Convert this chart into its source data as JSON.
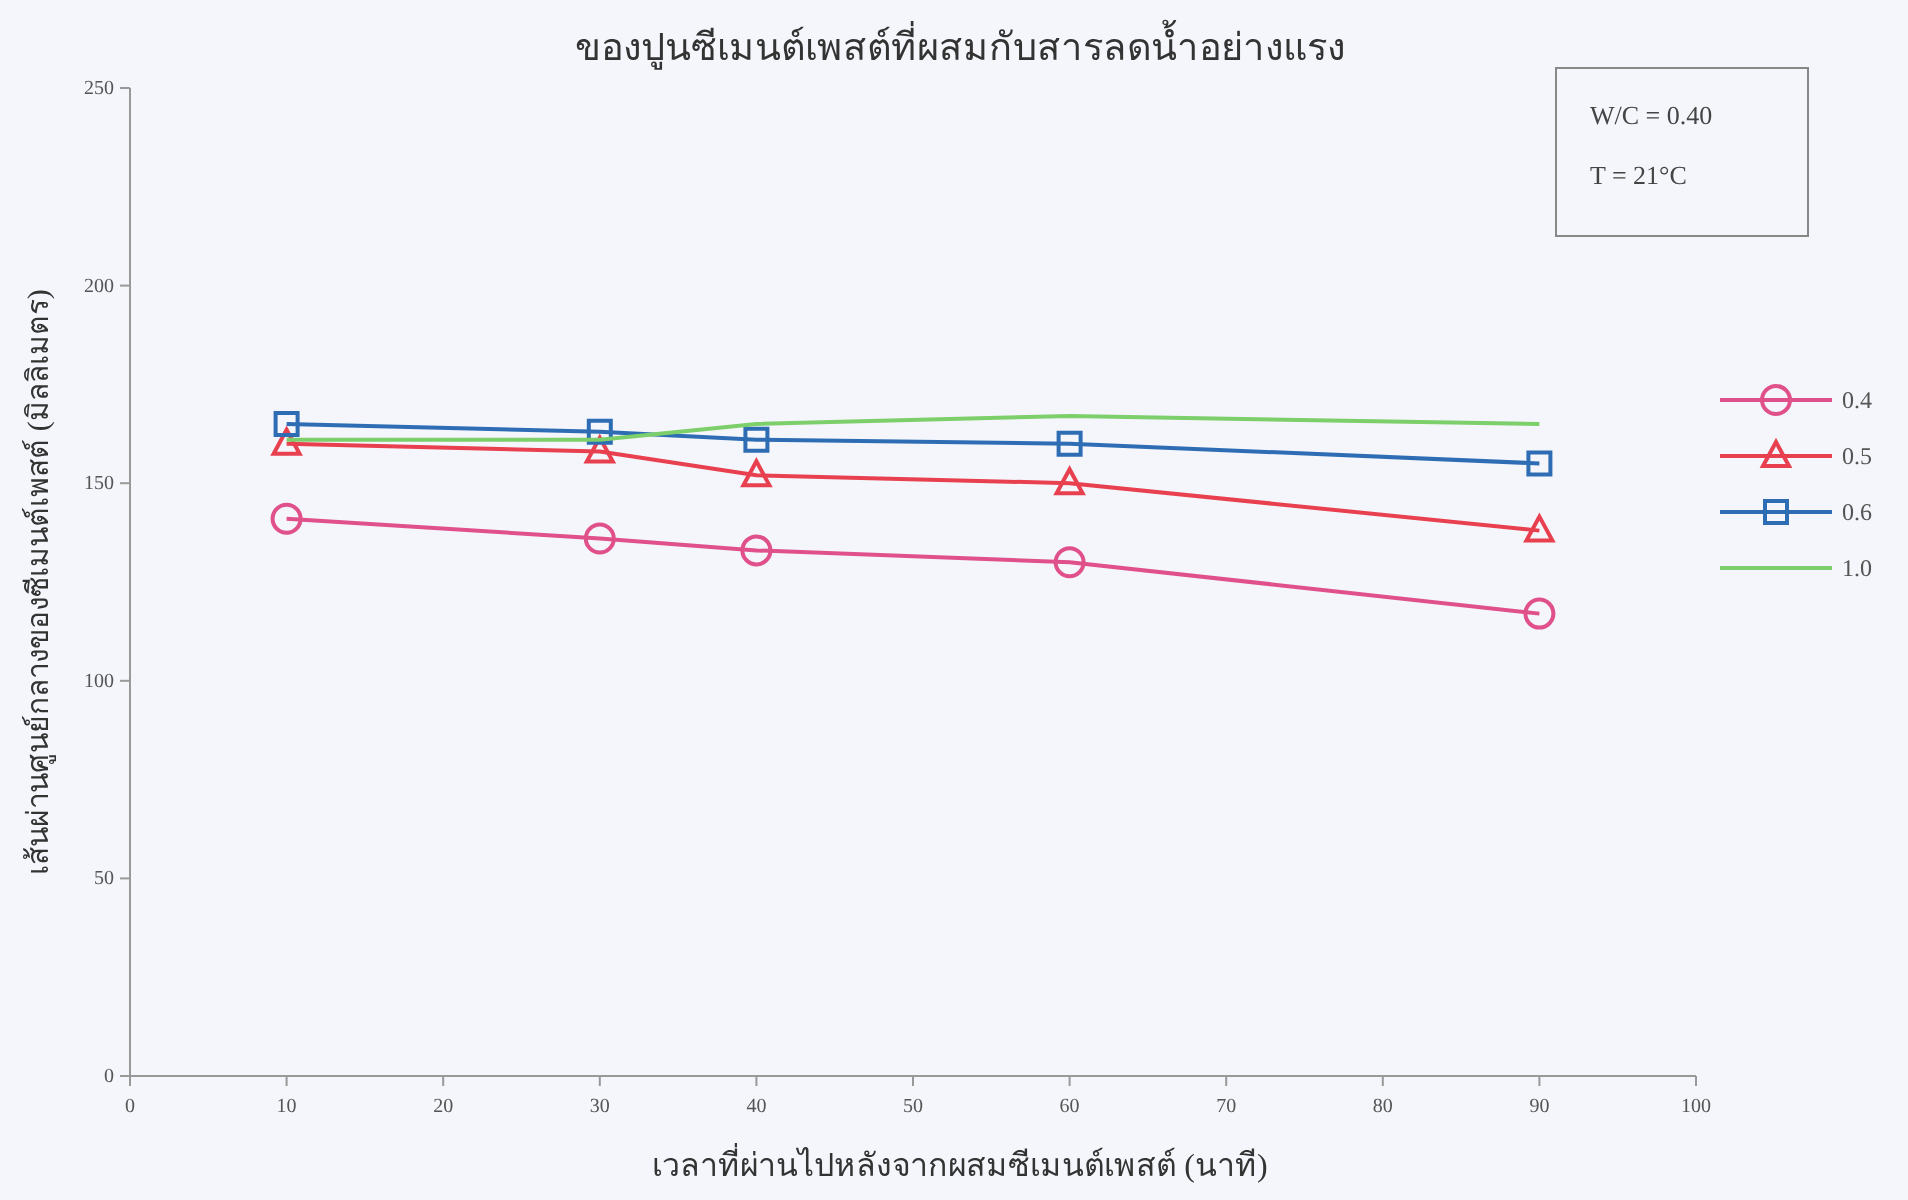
{
  "chart_data": {
    "type": "line",
    "title": "ของปูนซีเมนต์เพสต์ที่ผสมกับสารลดน้ำอย่างแรง",
    "xlabel": "เวลาที่ผ่านไปหลังจากผสมซีเมนต์เพสต์ (นาที)",
    "ylabel": "เส้นผ่านศูนย์กลางของซีเมนต์เพสต์ (มิลลิเมตร)",
    "x": [
      10,
      30,
      40,
      60,
      90
    ],
    "series": [
      {
        "name": "0.4",
        "color": "#e0508a",
        "marker": "circle",
        "values": [
          141,
          136,
          133,
          130,
          117
        ]
      },
      {
        "name": "0.5",
        "color": "#e8404f",
        "marker": "triangle",
        "values": [
          160,
          158,
          152,
          150,
          138
        ]
      },
      {
        "name": "0.6",
        "color": "#2e6db4",
        "marker": "square",
        "values": [
          165,
          163,
          161,
          160,
          155
        ]
      },
      {
        "name": "1.0",
        "color": "#7ccf6a",
        "marker": "none",
        "values": [
          161,
          161,
          165,
          167,
          165
        ]
      }
    ],
    "xlim": [
      0,
      100
    ],
    "xticks": [
      0,
      10,
      20,
      30,
      40,
      50,
      60,
      70,
      80,
      90,
      100
    ],
    "ylim": [
      0,
      250
    ],
    "yticks": [
      0,
      50,
      100,
      150,
      200,
      250
    ],
    "legend": "right",
    "annotations": [
      "W/C = 0.40",
      "T = 21°C"
    ]
  }
}
